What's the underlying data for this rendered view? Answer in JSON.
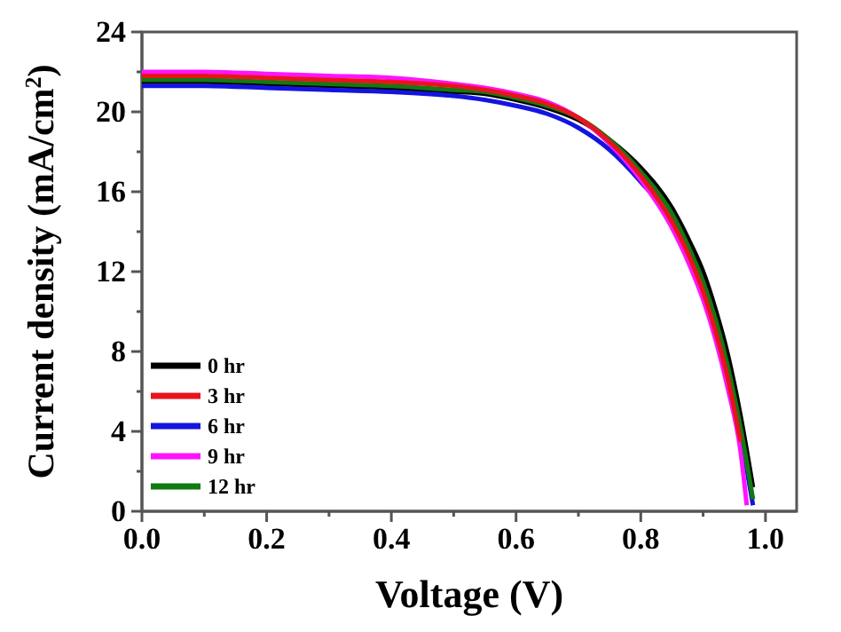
{
  "chart_data": {
    "type": "line",
    "xlabel": "Voltage (V)",
    "ylabel": "Current density (mA/cm$^{2}$)",
    "xlim": [
      0,
      1.05
    ],
    "ylim": [
      0,
      24
    ],
    "xticks": [
      {
        "value": 0,
        "label": "0.0"
      },
      {
        "value": 0.1,
        "label": null
      },
      {
        "value": 0.2,
        "label": "0.2"
      },
      {
        "value": 0.3,
        "label": null
      },
      {
        "value": 0.4,
        "label": "0.4"
      },
      {
        "value": 0.5,
        "label": null
      },
      {
        "value": 0.6,
        "label": "0.6"
      },
      {
        "value": 0.7,
        "label": null
      },
      {
        "value": 0.8,
        "label": "0.8"
      },
      {
        "value": 0.9,
        "label": null
      },
      {
        "value": 1.0,
        "label": "1.0"
      }
    ],
    "yticks": [
      0,
      {
        "value": 2,
        "label": null
      },
      4,
      {
        "value": 6,
        "label": null
      },
      8,
      {
        "value": 10,
        "label": null
      },
      12,
      {
        "value": 14,
        "label": null
      },
      16,
      {
        "value": 18,
        "label": null
      },
      20,
      {
        "value": 22,
        "label": null
      },
      24
    ],
    "x": [
      0,
      0.1,
      0.2,
      0.3,
      0.4,
      0.5,
      0.55,
      0.6,
      0.65,
      0.7,
      0.75,
      0.8,
      0.85,
      0.88,
      0.9,
      0.92,
      0.94,
      0.96,
      0.98
    ],
    "series": [
      {
        "name": "0 hr",
        "color": "#000000",
        "values": [
          21.5,
          21.5,
          21.4,
          21.3,
          21.2,
          21.0,
          20.9,
          20.6,
          20.2,
          19.6,
          18.6,
          17.2,
          15.2,
          13.4,
          12.0,
          10.1,
          7.8,
          4.8,
          1.2
        ]
      },
      {
        "name": "3 hr",
        "color": "#e8141c",
        "values": [
          21.8,
          21.8,
          21.7,
          21.6,
          21.5,
          21.3,
          21.1,
          20.8,
          20.4,
          19.7,
          18.5,
          16.8,
          14.5,
          12.6,
          11.0,
          9.0,
          6.6,
          3.5,
          null
        ]
      },
      {
        "name": "6 hr",
        "color": "#1414e0",
        "values": [
          21.3,
          21.3,
          21.2,
          21.1,
          21.0,
          20.8,
          20.6,
          20.3,
          19.9,
          19.2,
          18.1,
          16.5,
          14.5,
          12.6,
          11.1,
          9.2,
          6.8,
          3.8,
          0.3
        ]
      },
      {
        "name": "9 hr",
        "color": "#ff14ff",
        "x": [
          0,
          0.1,
          0.2,
          0.3,
          0.4,
          0.5,
          0.55,
          0.6,
          0.65,
          0.7,
          0.75,
          0.8,
          0.85,
          0.88,
          0.9,
          0.92,
          0.94,
          0.96,
          0.97
        ],
        "values": [
          22.0,
          22.0,
          21.9,
          21.8,
          21.7,
          21.4,
          21.2,
          20.9,
          20.5,
          19.7,
          18.4,
          16.6,
          14.2,
          12.2,
          10.6,
          8.6,
          6.1,
          3.0,
          0.3
        ]
      },
      {
        "name": "12 hr",
        "color": "#127a12",
        "values": [
          21.6,
          21.6,
          21.5,
          21.4,
          21.3,
          21.1,
          21.0,
          20.7,
          20.3,
          19.7,
          18.6,
          17.0,
          14.9,
          13.0,
          11.5,
          9.6,
          7.2,
          4.2,
          0.6
        ]
      }
    ],
    "legend": "bottom left",
    "marker": "none",
    "line_style": "solid",
    "grid": false
  }
}
